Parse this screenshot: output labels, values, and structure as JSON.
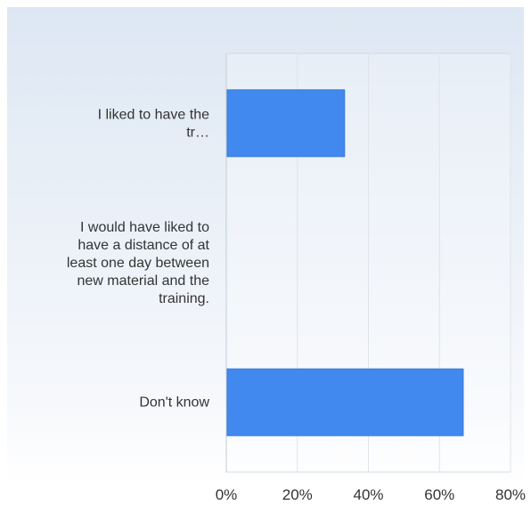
{
  "chart_data": {
    "type": "bar",
    "orientation": "horizontal",
    "categories": [
      "I liked to have the tr…",
      "I would have liked to have a distance of at least one day between new material and the training.",
      "Don't know"
    ],
    "values": [
      33.3,
      0,
      66.7
    ],
    "xlim": [
      0,
      80
    ],
    "x_ticks": [
      "0%",
      "20%",
      "40%",
      "60%",
      "80%"
    ],
    "grid": true,
    "legend": "none",
    "bar_color": "#4189ef",
    "title": "",
    "xlabel": "",
    "ylabel": ""
  }
}
